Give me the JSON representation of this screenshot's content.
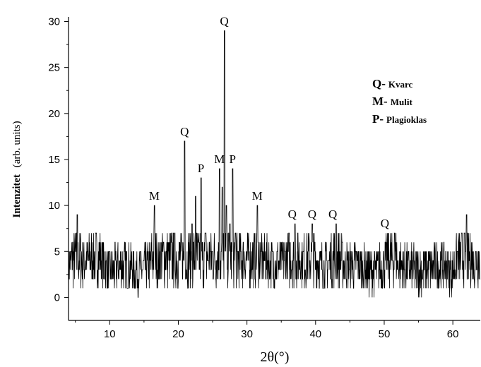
{
  "chart_data": {
    "type": "line",
    "title": "",
    "xlabel": "2θ(°)",
    "ylabel_bold": "Intenzitet",
    "ylabel_rest": "(arb. units)",
    "xlim": [
      4,
      64
    ],
    "ylim": [
      -2.5,
      30.5
    ],
    "x_ticks": [
      10,
      20,
      30,
      40,
      50,
      60
    ],
    "y_ticks": [
      0,
      5,
      10,
      15,
      20,
      25,
      30
    ],
    "grid": false,
    "legend_placement": "top-right",
    "legend": [
      {
        "key": "Q-",
        "name": "Kvarc"
      },
      {
        "key": "M-",
        "name": "Mulit"
      },
      {
        "key": "P-",
        "name": "Plagioklas"
      }
    ],
    "peaks": [
      {
        "label": "M",
        "x": 16.5,
        "y": 10
      },
      {
        "label": "Q",
        "x": 20.9,
        "y": 17
      },
      {
        "label": "P",
        "x": 23.3,
        "y": 13
      },
      {
        "label": "M",
        "x": 26.0,
        "y": 14
      },
      {
        "label": "Q",
        "x": 26.7,
        "y": 29
      },
      {
        "label": "P",
        "x": 27.9,
        "y": 14
      },
      {
        "label": "M",
        "x": 31.5,
        "y": 10
      },
      {
        "label": "Q",
        "x": 36.6,
        "y": 8
      },
      {
        "label": "Q",
        "x": 39.5,
        "y": 8
      },
      {
        "label": "Q",
        "x": 42.5,
        "y": 8
      },
      {
        "label": "Q",
        "x": 50.1,
        "y": 7
      }
    ],
    "series": [
      {
        "color": "#000000",
        "points": [
          [
            4.0,
            2
          ],
          [
            5.3,
            9
          ],
          [
            6.0,
            3
          ],
          [
            8.0,
            5
          ],
          [
            10.0,
            2
          ],
          [
            12.0,
            3
          ],
          [
            14.0,
            2
          ],
          [
            16.0,
            3
          ],
          [
            16.5,
            10
          ],
          [
            17.0,
            3
          ],
          [
            18.0,
            5
          ],
          [
            19.0,
            4
          ],
          [
            20.0,
            5
          ],
          [
            20.9,
            17
          ],
          [
            21.3,
            5
          ],
          [
            22.0,
            8
          ],
          [
            22.5,
            11
          ],
          [
            23.3,
            13
          ],
          [
            24.0,
            7
          ],
          [
            25.0,
            6
          ],
          [
            26.0,
            14
          ],
          [
            26.4,
            12
          ],
          [
            26.7,
            29
          ],
          [
            27.0,
            10
          ],
          [
            27.5,
            8
          ],
          [
            27.9,
            14
          ],
          [
            28.3,
            7
          ],
          [
            29.0,
            5
          ],
          [
            30.0,
            4
          ],
          [
            31.5,
            10
          ],
          [
            32.0,
            4
          ],
          [
            34.0,
            3
          ],
          [
            36.0,
            4
          ],
          [
            37.0,
            8
          ],
          [
            38.0,
            3
          ],
          [
            39.5,
            8
          ],
          [
            40.0,
            3
          ],
          [
            42.0,
            3
          ],
          [
            43.0,
            8
          ],
          [
            44.0,
            3
          ],
          [
            46.0,
            3
          ],
          [
            48.0,
            2
          ],
          [
            50.0,
            3
          ],
          [
            51.5,
            7
          ],
          [
            52.0,
            3
          ],
          [
            55.0,
            2
          ],
          [
            58.0,
            3
          ],
          [
            60.0,
            2
          ],
          [
            62.0,
            9
          ],
          [
            63.0,
            3
          ],
          [
            64.0,
            5
          ]
        ]
      }
    ]
  }
}
